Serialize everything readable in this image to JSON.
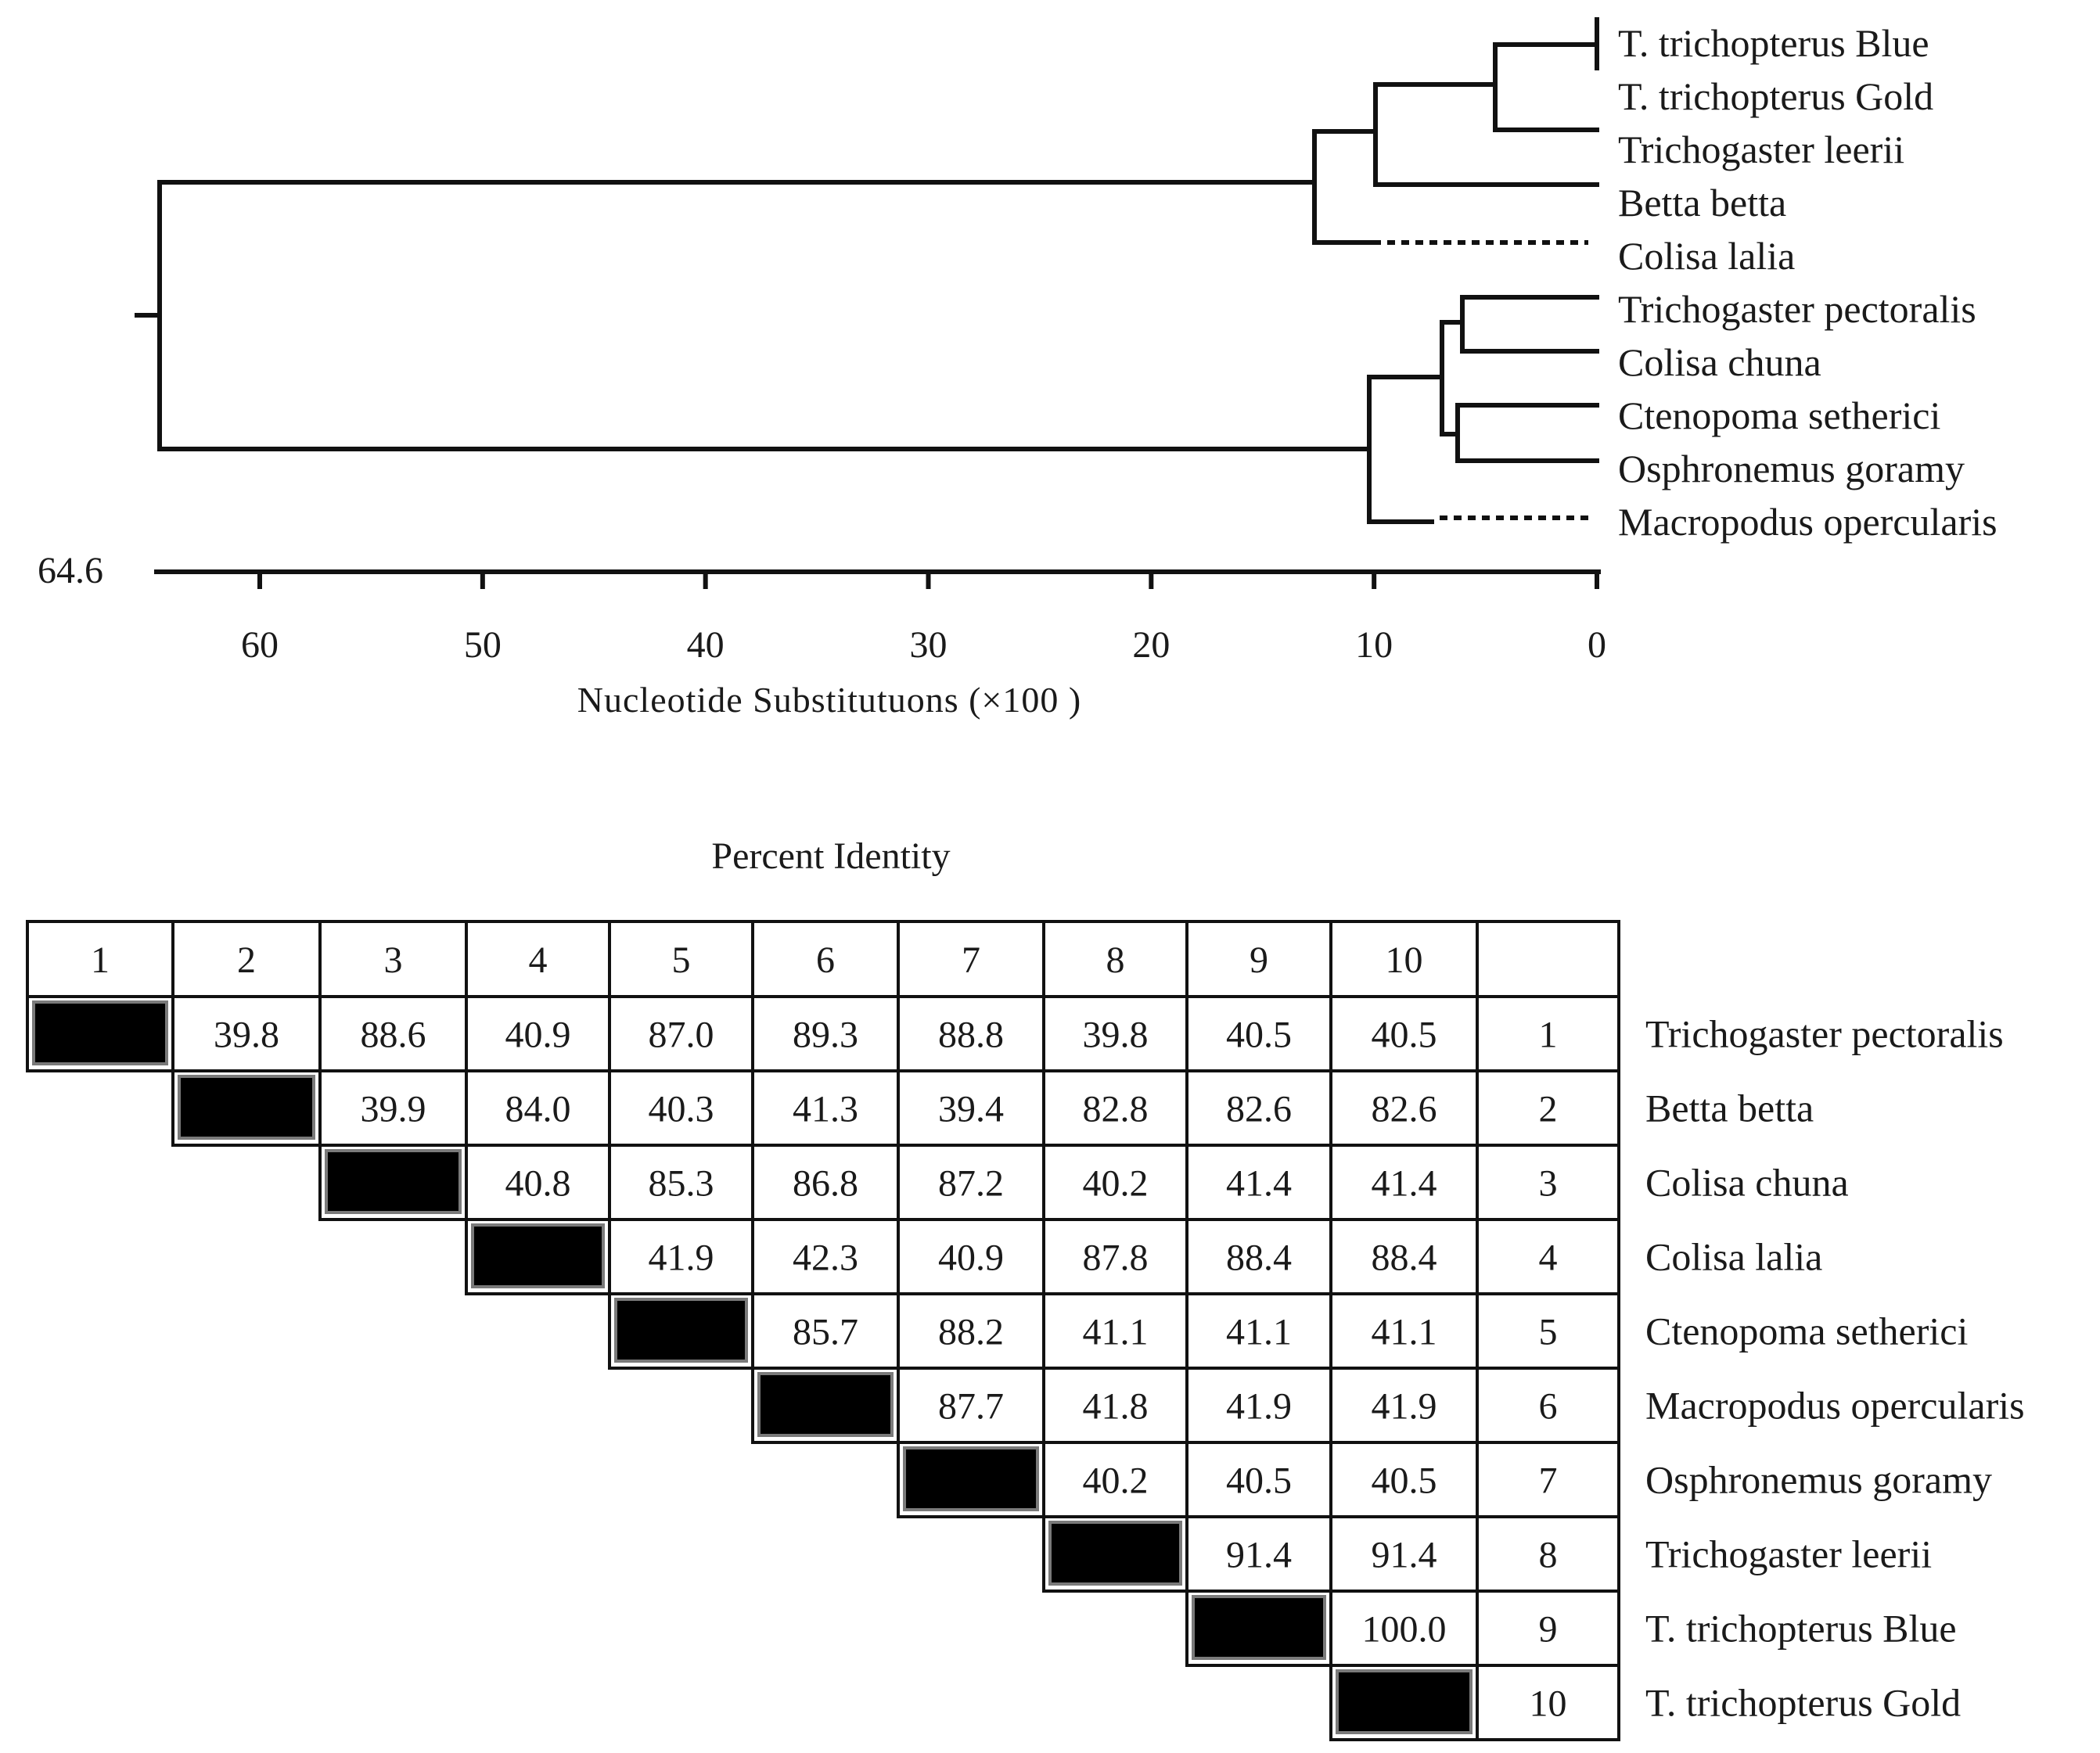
{
  "tree": {
    "root_value": "64.6",
    "axis_ticks": [
      "60",
      "50",
      "40",
      "30",
      "20",
      "10",
      "0"
    ],
    "axis_title": "Nucleotide Substitutuons (×100 )",
    "taxa": [
      "T. trichopterus Blue",
      "T. trichopterus Gold",
      "Trichogaster leerii",
      "Betta betta",
      "Colisa lalia",
      "Trichogaster pectoralis",
      "Colisa chuna",
      "Ctenopoma setherici",
      "Osphronemus goramy",
      "Macropodus opercularis"
    ],
    "branch_heights": {
      "root": 64.6,
      "blue_gold": 0,
      "blue_gold_leerii": 5,
      "with_betta": 10,
      "with_lalia": 12.8,
      "pectoralis_chuna": 6.5,
      "setherici_goramy": 6.8,
      "cluster_b_inner": 7.5,
      "with_macropodus": 10.5
    }
  },
  "table": {
    "title": "Percent Identity",
    "column_headers": [
      "1",
      "2",
      "3",
      "4",
      "5",
      "6",
      "7",
      "8",
      "9",
      "10"
    ],
    "row_numbers": [
      "1",
      "2",
      "3",
      "4",
      "5",
      "6",
      "7",
      "8",
      "9",
      "10"
    ],
    "row_names": [
      "Trichogaster pectoralis",
      "Betta betta",
      "Colisa chuna",
      "Colisa lalia",
      "Ctenopoma setherici",
      "Macropodus opercularis",
      "Osphronemus goramy",
      "Trichogaster leerii",
      "T. trichopterus Blue",
      "T. trichopterus Gold"
    ],
    "rows": [
      [
        "39.8",
        "88.6",
        "40.9",
        "87.0",
        "89.3",
        "88.8",
        "39.8",
        "40.5",
        "40.5"
      ],
      [
        "39.9",
        "84.0",
        "40.3",
        "41.3",
        "39.4",
        "82.8",
        "82.6",
        "82.6"
      ],
      [
        "40.8",
        "85.3",
        "86.8",
        "87.2",
        "40.2",
        "41.4",
        "41.4"
      ],
      [
        "41.9",
        "42.3",
        "40.9",
        "87.8",
        "88.4",
        "88.4"
      ],
      [
        "85.7",
        "88.2",
        "41.1",
        "41.1",
        "41.1"
      ],
      [
        "87.7",
        "41.8",
        "41.9",
        "41.9"
      ],
      [
        "40.2",
        "40.5",
        "40.5"
      ],
      [
        "91.4",
        "91.4"
      ],
      [
        "100.0"
      ],
      []
    ]
  }
}
